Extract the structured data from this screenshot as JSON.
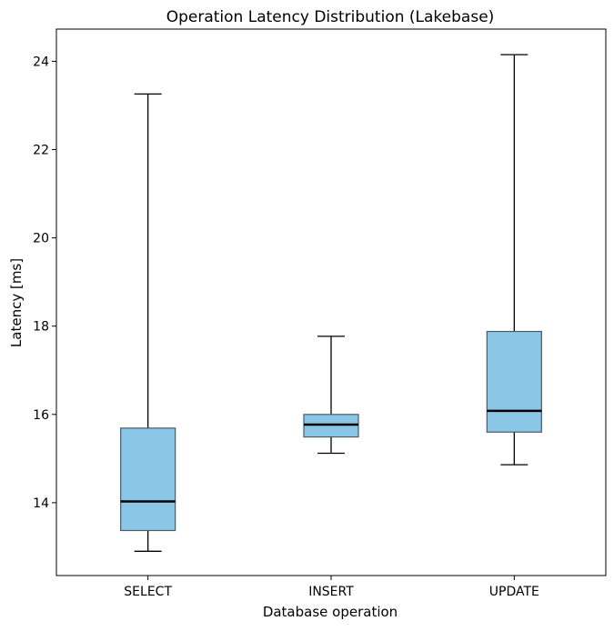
{
  "chart_data": {
    "type": "box",
    "title": "Operation Latency Distribution (Lakebase)",
    "xlabel": "Database operation",
    "ylabel": "Latency [ms]",
    "categories": [
      "SELECT",
      "INSERT",
      "UPDATE"
    ],
    "boxes": [
      {
        "whisker_low": 12.9,
        "q1": 13.37,
        "median": 14.03,
        "q3": 15.69,
        "whisker_high": 23.26
      },
      {
        "whisker_low": 15.12,
        "q1": 15.49,
        "median": 15.77,
        "q3": 16.0,
        "whisker_high": 17.77
      },
      {
        "whisker_low": 14.86,
        "q1": 15.6,
        "median": 16.08,
        "q3": 17.88,
        "whisker_high": 24.15
      }
    ],
    "ylim": [
      12.35,
      24.73
    ],
    "yticks": [
      "14",
      "16",
      "18",
      "20",
      "22",
      "24"
    ],
    "grid": false,
    "box_color": "#8ac6e6"
  }
}
